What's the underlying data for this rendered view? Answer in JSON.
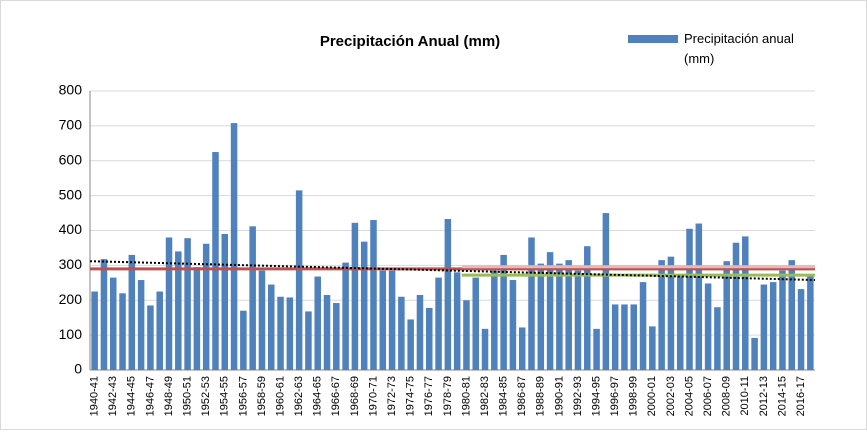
{
  "chart_data": {
    "type": "bar",
    "title": "Precipitación Anual (mm)",
    "categories": [
      "1940-41",
      null,
      "1942-43",
      null,
      "1944-45",
      null,
      "1946-47",
      null,
      "1948-49",
      null,
      "1950-51",
      null,
      "1952-53",
      null,
      "1954-55",
      null,
      "1956-57",
      null,
      "1958-59",
      null,
      "1960-61",
      null,
      "1962-63",
      null,
      "1964-65",
      null,
      "1966-67",
      null,
      "1968-69",
      null,
      "1970-71",
      null,
      "1972-73",
      null,
      "1974-75",
      null,
      "1976-77",
      null,
      "1978-79",
      null,
      "1980-81",
      null,
      "1982-83",
      null,
      "1984-85",
      null,
      "1986-87",
      null,
      "1988-89",
      null,
      "1990-91",
      null,
      "1992-93",
      null,
      "1994-95",
      null,
      "1996-97",
      null,
      "1998-99",
      null,
      "2000-01",
      null,
      "2002-03",
      null,
      "2004-05",
      null,
      "2006-07",
      null,
      "2008-09",
      null,
      "2010-11",
      null,
      "2012-13",
      null,
      "2014-15",
      null,
      "2016-17",
      null
    ],
    "series": [
      {
        "name": "Precipitación anual (mm)",
        "color": "#4f81bd",
        "values": [
          225,
          318,
          265,
          220,
          330,
          258,
          185,
          225,
          380,
          340,
          378,
          295,
          362,
          625,
          390,
          708,
          170,
          412,
          285,
          245,
          210,
          208,
          515,
          168,
          268,
          215,
          192,
          308,
          422,
          368,
          430,
          285,
          285,
          210,
          145,
          215,
          178,
          265,
          433,
          280,
          200,
          265,
          118,
          285,
          330,
          258,
          122,
          380,
          305,
          338,
          305,
          315,
          285,
          355,
          118,
          450,
          188,
          188,
          188,
          252,
          125,
          315,
          325,
          270,
          405,
          420,
          248,
          180,
          312,
          365,
          383,
          92,
          245,
          252,
          285,
          315,
          232,
          270
        ]
      }
    ],
    "reference_lines": [
      {
        "color": "#c0504d",
        "x": [
          0,
          77
        ],
        "y": [
          290,
          290
        ]
      },
      {
        "color": "#e6b9b8",
        "x": [
          40,
          77
        ],
        "y": [
          296,
          296
        ]
      },
      {
        "color": "#9bbb59",
        "x": [
          40,
          77
        ],
        "y": [
          272,
          272
        ]
      },
      {
        "color": "#000000",
        "dotted": true,
        "x": [
          0,
          77
        ],
        "y": [
          312,
          258
        ]
      }
    ],
    "ylim": [
      0,
      800
    ],
    "yticks": [
      0,
      100,
      200,
      300,
      400,
      500,
      600,
      700,
      800
    ],
    "grid": true,
    "legend": "top-right"
  }
}
